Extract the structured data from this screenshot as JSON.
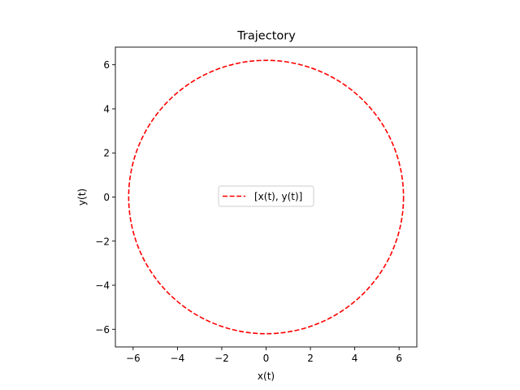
{
  "chart_data": {
    "type": "line",
    "title": "Trajectory",
    "xlabel": "x(t)",
    "ylabel": "y(t)",
    "xlim": [
      -6.8,
      6.8
    ],
    "ylim": [
      -6.8,
      6.8
    ],
    "xticks": [
      -6,
      -4,
      -2,
      0,
      2,
      4,
      6
    ],
    "yticks": [
      -6,
      -4,
      -2,
      0,
      2,
      4,
      6
    ],
    "xtick_labels": [
      "−6",
      "−4",
      "−2",
      "0",
      "2",
      "4",
      "6"
    ],
    "ytick_labels": [
      "−6",
      "−4",
      "−2",
      "0",
      "2",
      "4",
      "6"
    ],
    "grid": false,
    "legend_position": "center",
    "series": [
      {
        "name": "[x(t), y(t)]",
        "color": "#ff0000",
        "style": "dashed",
        "shape": "circle",
        "center": [
          0,
          0
        ],
        "radius": 6.2
      }
    ]
  }
}
